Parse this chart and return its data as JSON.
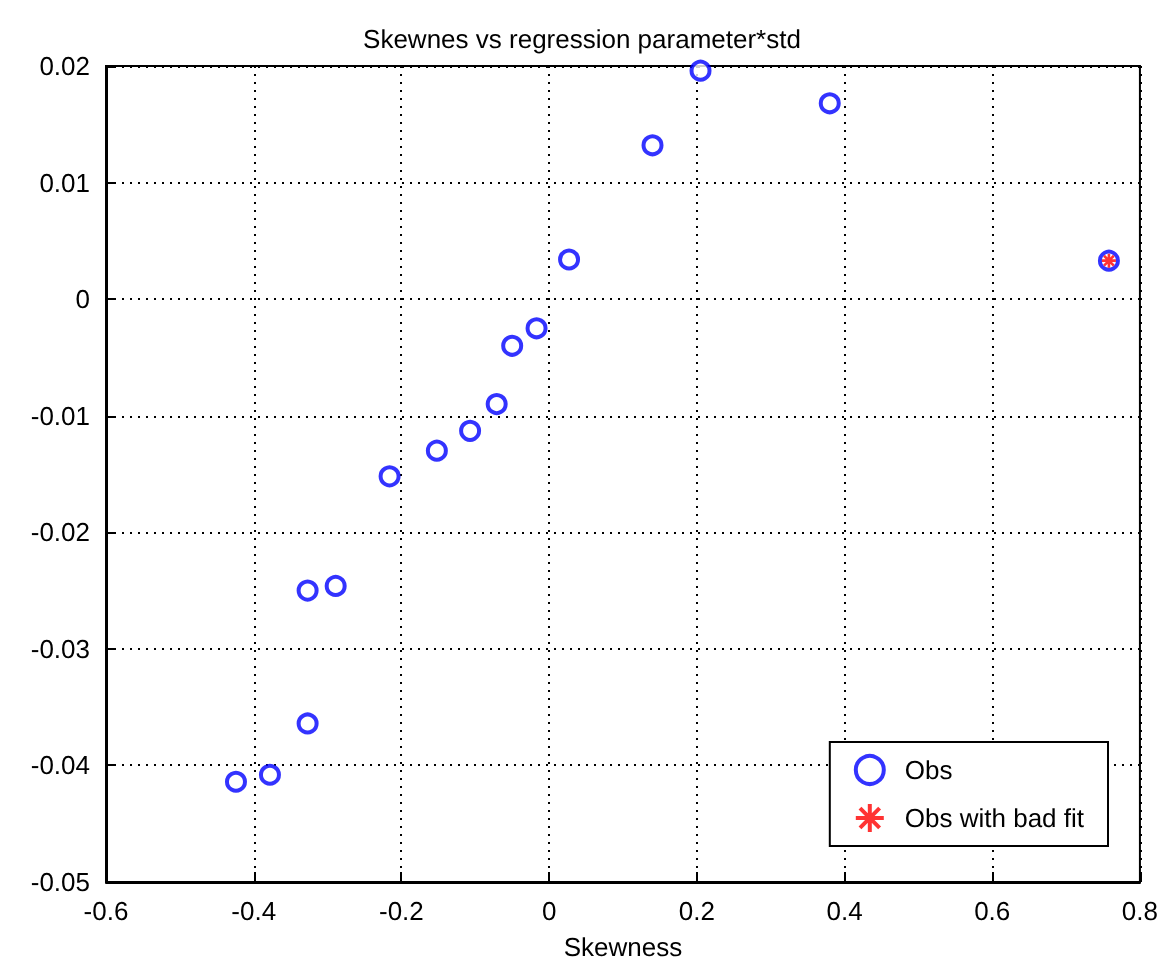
{
  "chart_data": {
    "type": "scatter",
    "title": "Skewnes vs regression parameter*std",
    "xlabel": "Skewness",
    "xlim": [
      -0.6,
      0.8
    ],
    "xticks": [
      -0.6,
      -0.4,
      -0.2,
      0,
      0.2,
      0.4,
      0.6,
      0.8
    ],
    "ylim": [
      -0.05,
      0.02
    ],
    "yticks": [
      -0.05,
      -0.04,
      -0.03,
      -0.02,
      -0.01,
      0,
      0.01,
      0.02
    ],
    "grid": true,
    "legend": "bottom right",
    "series": [
      {
        "name": "Obs",
        "color": "#0000ff",
        "marker": "circle",
        "x": [
          0.205,
          0.38,
          0.14,
          0.027,
          0.758,
          -0.017,
          -0.05,
          -0.071,
          -0.107,
          -0.152,
          -0.216,
          -0.327,
          -0.289,
          -0.327,
          -0.378,
          -0.424
        ],
        "values": [
          0.0196,
          0.0168,
          0.0132,
          0.0034,
          0.0033,
          -0.0025,
          -0.004,
          -0.009,
          -0.0113,
          -0.013,
          -0.0152,
          -0.025,
          -0.0246,
          -0.0364,
          -0.0408,
          -0.0414
        ]
      },
      {
        "name": "Obs with bad fit",
        "color": "#ff0000",
        "marker": "cross",
        "x": [
          0.758
        ],
        "values": [
          0.0033
        ]
      }
    ]
  }
}
